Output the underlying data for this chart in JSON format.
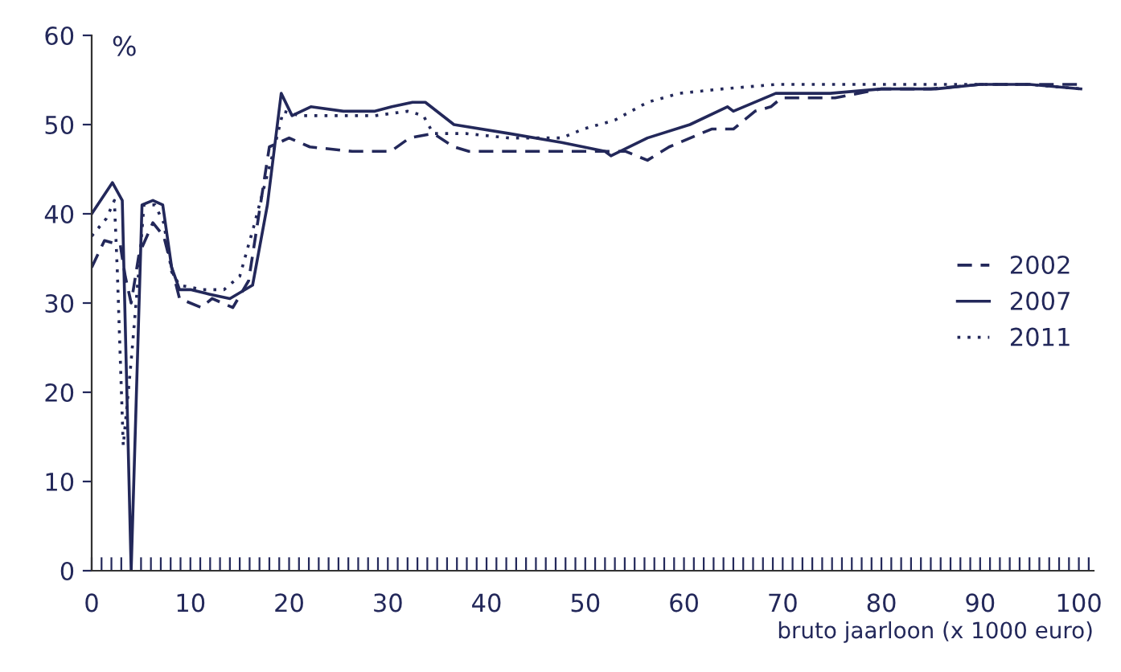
{
  "chart_data": {
    "type": "line",
    "xlabel": "bruto jaarloon (x 1000 euro)",
    "ylabel": "%",
    "xlim": [
      0,
      101.5
    ],
    "ylim": [
      0,
      60
    ],
    "xticks": [
      0,
      {
        "value": 1,
        "label": null
      },
      {
        "value": 2,
        "label": null
      },
      {
        "value": 3,
        "label": null
      },
      {
        "value": 4,
        "label": null
      },
      {
        "value": 5,
        "label": null
      },
      {
        "value": 6,
        "label": null
      },
      {
        "value": 7,
        "label": null
      },
      {
        "value": 8,
        "label": null
      },
      {
        "value": 9,
        "label": null
      },
      10,
      {
        "value": 11,
        "label": null
      },
      {
        "value": 12,
        "label": null
      },
      {
        "value": 13,
        "label": null
      },
      {
        "value": 14,
        "label": null
      },
      {
        "value": 15,
        "label": null
      },
      {
        "value": 16,
        "label": null
      },
      {
        "value": 17,
        "label": null
      },
      {
        "value": 18,
        "label": null
      },
      {
        "value": 19,
        "label": null
      },
      20,
      {
        "value": 21,
        "label": null
      },
      {
        "value": 22,
        "label": null
      },
      {
        "value": 23,
        "label": null
      },
      {
        "value": 24,
        "label": null
      },
      {
        "value": 25,
        "label": null
      },
      {
        "value": 26,
        "label": null
      },
      {
        "value": 27,
        "label": null
      },
      {
        "value": 28,
        "label": null
      },
      {
        "value": 29,
        "label": null
      },
      30,
      {
        "value": 31,
        "label": null
      },
      {
        "value": 32,
        "label": null
      },
      {
        "value": 33,
        "label": null
      },
      {
        "value": 34,
        "label": null
      },
      {
        "value": 35,
        "label": null
      },
      {
        "value": 36,
        "label": null
      },
      {
        "value": 37,
        "label": null
      },
      {
        "value": 38,
        "label": null
      },
      {
        "value": 39,
        "label": null
      },
      40,
      {
        "value": 41,
        "label": null
      },
      {
        "value": 42,
        "label": null
      },
      {
        "value": 43,
        "label": null
      },
      {
        "value": 44,
        "label": null
      },
      {
        "value": 45,
        "label": null
      },
      {
        "value": 46,
        "label": null
      },
      {
        "value": 47,
        "label": null
      },
      {
        "value": 48,
        "label": null
      },
      {
        "value": 49,
        "label": null
      },
      50,
      {
        "value": 51,
        "label": null
      },
      {
        "value": 52,
        "label": null
      },
      {
        "value": 53,
        "label": null
      },
      {
        "value": 54,
        "label": null
      },
      {
        "value": 55,
        "label": null
      },
      {
        "value": 56,
        "label": null
      },
      {
        "value": 57,
        "label": null
      },
      {
        "value": 58,
        "label": null
      },
      {
        "value": 59,
        "label": null
      },
      60,
      {
        "value": 61,
        "label": null
      },
      {
        "value": 62,
        "label": null
      },
      {
        "value": 63,
        "label": null
      },
      {
        "value": 64,
        "label": null
      },
      {
        "value": 65,
        "label": null
      },
      {
        "value": 66,
        "label": null
      },
      {
        "value": 67,
        "label": null
      },
      {
        "value": 68,
        "label": null
      },
      {
        "value": 69,
        "label": null
      },
      70,
      {
        "value": 71,
        "label": null
      },
      {
        "value": 72,
        "label": null
      },
      {
        "value": 73,
        "label": null
      },
      {
        "value": 74,
        "label": null
      },
      {
        "value": 75,
        "label": null
      },
      {
        "value": 76,
        "label": null
      },
      {
        "value": 77,
        "label": null
      },
      {
        "value": 78,
        "label": null
      },
      {
        "value": 79,
        "label": null
      },
      80,
      {
        "value": 81,
        "label": null
      },
      {
        "value": 82,
        "label": null
      },
      {
        "value": 83,
        "label": null
      },
      {
        "value": 84,
        "label": null
      },
      {
        "value": 85,
        "label": null
      },
      {
        "value": 86,
        "label": null
      },
      {
        "value": 87,
        "label": null
      },
      {
        "value": 88,
        "label": null
      },
      {
        "value": 89,
        "label": null
      },
      90,
      {
        "value": 91,
        "label": null
      },
      {
        "value": 92,
        "label": null
      },
      {
        "value": 93,
        "label": null
      },
      {
        "value": 94,
        "label": null
      },
      {
        "value": 95,
        "label": null
      },
      {
        "value": 96,
        "label": null
      },
      {
        "value": 97,
        "label": null
      },
      {
        "value": 98,
        "label": null
      },
      {
        "value": 99,
        "label": null
      },
      100,
      {
        "value": 101,
        "label": null
      }
    ],
    "yticks": [
      0,
      10,
      20,
      30,
      40,
      50,
      60
    ],
    "grid": false,
    "legend": "right",
    "marker": "none",
    "series": [
      {
        "name": "2002",
        "color": "#23285a",
        "line_style": "dashed",
        "x": [
          0,
          1.3,
          2.9,
          3.4,
          4,
          4.8,
          6.2,
          7.3,
          8.1,
          8.9,
          11.1,
          12.2,
          14.3,
          15.9,
          18,
          20,
          22.1,
          26.4,
          30.3,
          32.2,
          34.6,
          36.7,
          38.2,
          42.3,
          47.6,
          50.9,
          54.1,
          56.3,
          58.5,
          61.7,
          62.8,
          65,
          67.2,
          68.8,
          69.9,
          75.3,
          80,
          85,
          90,
          95,
          100
        ],
        "values": [
          34,
          37,
          36.5,
          33,
          30,
          35.5,
          39,
          37.5,
          34,
          30.5,
          29.5,
          30.5,
          29.5,
          32.5,
          47.5,
          48.5,
          47.5,
          47,
          47,
          48.5,
          49,
          47.5,
          47,
          47,
          47,
          47,
          47,
          46,
          47.5,
          49,
          49.5,
          49.5,
          51.5,
          52,
          53,
          53,
          54,
          54,
          54.5,
          54.5,
          54.5
        ]
      },
      {
        "name": "2007",
        "color": "#23285a",
        "line_style": "solid",
        "x": [
          0,
          2.1,
          3.1,
          4,
          5.1,
          6.2,
          7.2,
          8.1,
          8.9,
          10,
          11.9,
          14,
          16.3,
          17.8,
          19.2,
          20.3,
          22.2,
          25.5,
          28.7,
          30.4,
          32.5,
          33.8,
          36.7,
          42.3,
          47.6,
          52,
          52.6,
          56.3,
          60.6,
          64.4,
          65,
          69.3,
          74.8,
          80,
          85.5,
          90,
          95,
          100.2
        ],
        "values": [
          40,
          43.5,
          41.5,
          0,
          41,
          41.5,
          41,
          34,
          31.5,
          31.5,
          31,
          30.5,
          32,
          41,
          53.5,
          51,
          52,
          51.5,
          51.5,
          52,
          52.5,
          52.5,
          50,
          49,
          48,
          47,
          46.5,
          48.5,
          50,
          52,
          51.5,
          53.5,
          53.5,
          54,
          54,
          54.5,
          54.5,
          54
        ]
      },
      {
        "name": "2011",
        "color": "#23285a",
        "line_style": "dotted",
        "x": [
          0,
          1.5,
          2.3,
          2.6,
          3.2,
          4,
          4.8,
          5.3,
          6.4,
          7.3,
          8.1,
          8.9,
          11.3,
          13.4,
          15,
          16.4,
          18.3,
          19.4,
          21.1,
          25.5,
          28.7,
          32,
          33.6,
          34.6,
          37.9,
          42.3,
          47.6,
          49.8,
          53,
          56.3,
          59.5,
          63.9,
          69.3,
          75.8,
          83.3,
          90,
          95,
          100.2
        ],
        "values": [
          37.5,
          39.5,
          41.5,
          33.5,
          14,
          23.5,
          34,
          41,
          41,
          39,
          33.5,
          32,
          31.5,
          31.5,
          33,
          38.5,
          46.5,
          51.5,
          51,
          51,
          51,
          51.5,
          51,
          49,
          49,
          48.5,
          48.5,
          49.5,
          50.5,
          52.5,
          53.5,
          54,
          54.5,
          54.5,
          54.5,
          54.5,
          54.5,
          54
        ]
      }
    ]
  }
}
